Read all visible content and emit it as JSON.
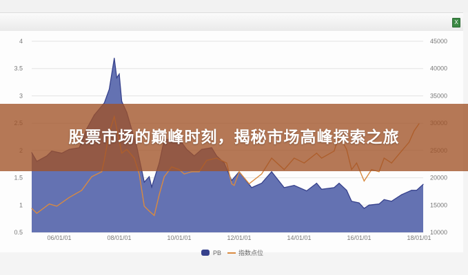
{
  "title": "股票市场的巅峰时刻，揭秘市场高峰探索之旅",
  "toolbar": {
    "export_icon": "excel-icon",
    "export_icon_label": "X"
  },
  "colors": {
    "pb_fill": "#6472b2",
    "pb_stroke": "#36418c",
    "index_line": "#d98a40",
    "banner": "#a05226"
  },
  "chart_data": {
    "type": "area+line",
    "title": "",
    "xlabel": "",
    "ylabel_left": "",
    "ylabel_right": "",
    "x_ticks": [
      "06/01/01",
      "08/01/01",
      "10/01/01",
      "12/01/01",
      "14/01/01",
      "16/01/01",
      "18/01/01"
    ],
    "y_left_ticks": [
      "4",
      "3.5",
      "3",
      "2.5",
      "2",
      "1.5",
      "1",
      "0.5"
    ],
    "y_right_ticks": [
      "45000",
      "40000",
      "35000",
      "30000",
      "25000",
      "20000",
      "15000",
      "10000"
    ],
    "y_left_range": [
      0.5,
      4
    ],
    "y_right_range": [
      10000,
      45000
    ],
    "grid": true,
    "legend_position": "bottom",
    "series": [
      {
        "name": "PB",
        "type": "area",
        "axis": "left",
        "x": [
          "2005-02",
          "2005-04",
          "2005-08",
          "2005-10",
          "2006-02",
          "2006-05",
          "2006-09",
          "2006-12",
          "2007-03",
          "2007-07",
          "2007-09",
          "2007-11",
          "2007-12",
          "2008-01",
          "2008-02",
          "2008-04",
          "2008-08",
          "2008-11",
          "2009-01",
          "2009-02",
          "2009-05",
          "2009-07",
          "2009-10",
          "2010-01",
          "2010-04",
          "2010-07",
          "2010-10",
          "2011-02",
          "2011-04",
          "2011-07",
          "2011-10",
          "2012-01",
          "2012-06",
          "2012-10",
          "2013-02",
          "2013-07",
          "2013-11",
          "2014-04",
          "2014-08",
          "2014-10",
          "2015-03",
          "2015-05",
          "2015-08",
          "2015-10",
          "2016-01",
          "2016-03",
          "2016-05",
          "2016-09",
          "2016-11",
          "2017-02",
          "2017-06",
          "2017-10",
          "2017-12",
          "2018-01"
        ],
        "values": [
          1.96,
          1.8,
          1.9,
          1.99,
          1.95,
          2.02,
          2.05,
          2.4,
          2.65,
          2.87,
          3.12,
          3.69,
          3.33,
          3.4,
          2.9,
          2.7,
          2.07,
          1.42,
          1.52,
          1.33,
          1.77,
          2.2,
          2.2,
          2.21,
          2.02,
          1.9,
          2.02,
          2.05,
          1.9,
          1.77,
          1.45,
          1.61,
          1.32,
          1.4,
          1.61,
          1.32,
          1.36,
          1.26,
          1.4,
          1.29,
          1.32,
          1.4,
          1.27,
          1.07,
          1.04,
          0.94,
          1.0,
          1.02,
          1.1,
          1.07,
          1.19,
          1.27,
          1.27,
          1.38
        ]
      },
      {
        "name": "指数点位",
        "type": "line",
        "axis": "right",
        "x": [
          "2005-02",
          "2005-04",
          "2005-09",
          "2005-12",
          "2006-05",
          "2006-10",
          "2007-02",
          "2007-06",
          "2007-07",
          "2007-09",
          "2007-11",
          "2008-02",
          "2008-04",
          "2008-07",
          "2008-09",
          "2008-11",
          "2009-01",
          "2009-03",
          "2009-05",
          "2009-07",
          "2009-10",
          "2010-01",
          "2010-03",
          "2010-06",
          "2010-09",
          "2010-12",
          "2011-04",
          "2011-08",
          "2011-10",
          "2011-11",
          "2012-01",
          "2012-05",
          "2012-10",
          "2013-02",
          "2013-07",
          "2013-11",
          "2014-03",
          "2014-08",
          "2014-10",
          "2015-03",
          "2015-05",
          "2015-08",
          "2015-10",
          "2015-12",
          "2016-03",
          "2016-06",
          "2016-09",
          "2016-11",
          "2017-02",
          "2017-06",
          "2017-09",
          "2017-11",
          "2018-01"
        ],
        "values": [
          14400,
          13500,
          15200,
          14800,
          16400,
          17700,
          20200,
          21100,
          23200,
          28300,
          31200,
          24500,
          25200,
          23600,
          20700,
          14800,
          13900,
          13100,
          16900,
          20200,
          22000,
          21500,
          20700,
          21100,
          21100,
          23200,
          23600,
          22700,
          18900,
          18600,
          21100,
          18900,
          20700,
          23600,
          21500,
          23600,
          22700,
          24500,
          23600,
          24900,
          27800,
          25200,
          21500,
          22700,
          19400,
          21500,
          21100,
          23600,
          22700,
          24900,
          26500,
          28600,
          29900
        ]
      }
    ]
  }
}
